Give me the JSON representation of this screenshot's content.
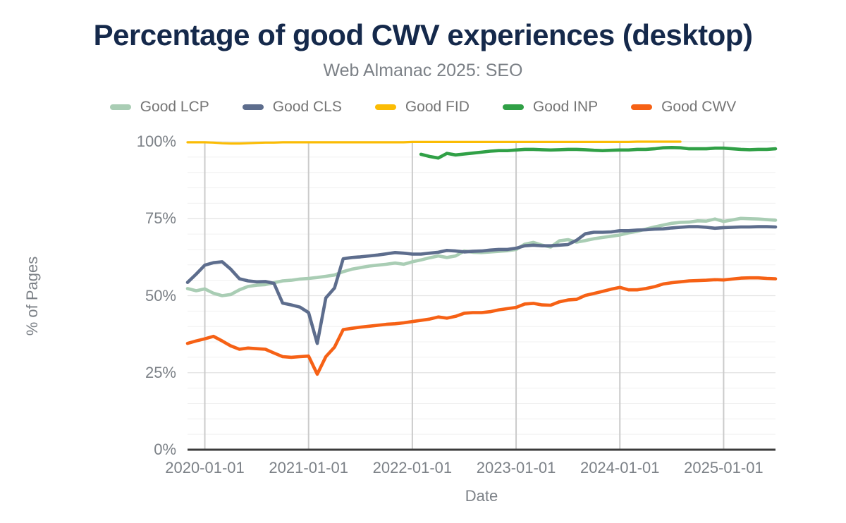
{
  "chart_data": {
    "type": "line",
    "title": "Percentage of good CWV experiences (desktop)",
    "subtitle": "Web Almanac 2025: SEO",
    "xlabel": "Date",
    "ylabel": "% of Pages",
    "ylim": [
      0,
      100
    ],
    "grid": {
      "y_major_step": 25,
      "y_minor_step": 5,
      "x_gridlines": "yearly"
    },
    "legend_position": "top",
    "y_ticks": [
      {
        "label": "0%",
        "value": 0
      },
      {
        "label": "25%",
        "value": 25
      },
      {
        "label": "50%",
        "value": 50
      },
      {
        "label": "75%",
        "value": 75
      },
      {
        "label": "100%",
        "value": 100
      }
    ],
    "x_ticks": [
      {
        "label": "2020-01-01",
        "month": "2020-01"
      },
      {
        "label": "2021-01-01",
        "month": "2021-01"
      },
      {
        "label": "2022-01-01",
        "month": "2022-01"
      },
      {
        "label": "2023-01-01",
        "month": "2023-01"
      },
      {
        "label": "2024-01-01",
        "month": "2024-01"
      },
      {
        "label": "2025-01-01",
        "month": "2025-01"
      }
    ],
    "x_months": [
      "2019-11",
      "2019-12",
      "2020-01",
      "2020-02",
      "2020-03",
      "2020-04",
      "2020-05",
      "2020-06",
      "2020-07",
      "2020-08",
      "2020-09",
      "2020-10",
      "2020-11",
      "2020-12",
      "2021-01",
      "2021-02",
      "2021-03",
      "2021-04",
      "2021-05",
      "2021-06",
      "2021-07",
      "2021-08",
      "2021-09",
      "2021-10",
      "2021-11",
      "2021-12",
      "2022-01",
      "2022-02",
      "2022-03",
      "2022-04",
      "2022-05",
      "2022-06",
      "2022-07",
      "2022-08",
      "2022-09",
      "2022-10",
      "2022-11",
      "2022-12",
      "2023-01",
      "2023-02",
      "2023-03",
      "2023-04",
      "2023-05",
      "2023-06",
      "2023-07",
      "2023-08",
      "2023-09",
      "2023-10",
      "2023-11",
      "2023-12",
      "2024-01",
      "2024-02",
      "2024-03",
      "2024-04",
      "2024-05",
      "2024-06",
      "2024-07",
      "2024-08",
      "2024-09",
      "2024-10",
      "2024-11",
      "2024-12",
      "2025-01",
      "2025-02",
      "2025-03",
      "2025-04",
      "2025-05",
      "2025-06",
      "2025-07"
    ],
    "series": [
      {
        "name": "Good LCP",
        "color": "#a9cdb4",
        "first_index": 0,
        "values": [
          52.3,
          51.6,
          52.2,
          50.8,
          50.0,
          50.4,
          51.9,
          53.0,
          53.4,
          53.6,
          54.2,
          54.8,
          55.0,
          55.4,
          55.6,
          55.9,
          56.3,
          56.7,
          57.8,
          58.6,
          59.1,
          59.6,
          59.9,
          60.2,
          60.6,
          60.2,
          61.0,
          61.6,
          62.3,
          62.9,
          62.4,
          62.9,
          64.5,
          64.1,
          64.0,
          64.2,
          64.4,
          64.6,
          65.0,
          66.7,
          67.3,
          66.4,
          65.8,
          67.8,
          68.2,
          67.4,
          67.9,
          68.5,
          68.9,
          69.3,
          69.7,
          70.4,
          70.9,
          71.6,
          72.3,
          72.9,
          73.5,
          73.8,
          73.9,
          74.3,
          74.2,
          74.9,
          74.1,
          74.6,
          75.1,
          75.0,
          74.9,
          74.7,
          74.5
        ]
      },
      {
        "name": "Good CLS",
        "color": "#5d6d8d",
        "first_index": 0,
        "values": [
          54.3,
          57.0,
          59.9,
          60.7,
          61.0,
          58.6,
          55.5,
          54.8,
          54.5,
          54.6,
          54.0,
          47.6,
          47.0,
          46.3,
          44.5,
          34.5,
          49.3,
          52.5,
          62.0,
          62.4,
          62.6,
          62.9,
          63.2,
          63.6,
          64.0,
          63.8,
          63.5,
          63.5,
          63.8,
          64.1,
          64.7,
          64.5,
          64.2,
          64.4,
          64.5,
          64.8,
          65.0,
          65.0,
          65.4,
          66.2,
          66.4,
          66.2,
          66.2,
          66.4,
          66.6,
          68.0,
          70.1,
          70.6,
          70.6,
          70.7,
          71.1,
          71.1,
          71.3,
          71.4,
          71.6,
          71.7,
          72.0,
          72.2,
          72.4,
          72.4,
          72.2,
          71.9,
          72.1,
          72.2,
          72.3,
          72.3,
          72.4,
          72.4,
          72.3
        ]
      },
      {
        "name": "Good FID",
        "color": "#fbbc04",
        "first_index": 0,
        "values": [
          99.8,
          99.8,
          99.8,
          99.7,
          99.5,
          99.4,
          99.4,
          99.5,
          99.6,
          99.7,
          99.7,
          99.8,
          99.8,
          99.8,
          99.8,
          99.8,
          99.8,
          99.8,
          99.8,
          99.8,
          99.8,
          99.8,
          99.8,
          99.8,
          99.8,
          99.8,
          99.9,
          99.9,
          99.9,
          99.9,
          99.9,
          99.9,
          99.9,
          99.9,
          99.9,
          99.9,
          99.9,
          99.9,
          99.9,
          99.9,
          99.9,
          99.9,
          99.9,
          99.9,
          99.9,
          99.9,
          99.9,
          99.9,
          99.9,
          99.9,
          99.9,
          99.9,
          100,
          100,
          100,
          100,
          100,
          100
        ]
      },
      {
        "name": "Good INP",
        "color": "#30a046",
        "first_index": 27,
        "values": [
          95.9,
          95.2,
          94.7,
          96.2,
          95.7,
          96.0,
          96.3,
          96.6,
          96.9,
          97.1,
          97.1,
          97.3,
          97.5,
          97.5,
          97.4,
          97.3,
          97.4,
          97.5,
          97.5,
          97.4,
          97.2,
          97.1,
          97.2,
          97.3,
          97.3,
          97.5,
          97.5,
          97.7,
          98.0,
          98.1,
          98.0,
          97.7,
          97.7,
          97.7,
          97.9,
          97.9,
          97.7,
          97.5,
          97.4,
          97.5,
          97.5,
          97.7
        ]
      },
      {
        "name": "Good CWV",
        "color": "#f66115",
        "first_index": 0,
        "values": [
          34.5,
          35.3,
          36.0,
          36.8,
          35.3,
          33.7,
          32.6,
          33.0,
          32.8,
          32.6,
          31.4,
          30.2,
          30.0,
          30.2,
          30.4,
          24.5,
          30.2,
          33.3,
          39.0,
          39.4,
          39.8,
          40.1,
          40.4,
          40.7,
          40.9,
          41.2,
          41.6,
          42.0,
          42.4,
          43.1,
          42.7,
          43.3,
          44.3,
          44.5,
          44.5,
          44.8,
          45.4,
          45.8,
          46.2,
          47.3,
          47.5,
          47.0,
          46.9,
          48.0,
          48.6,
          48.8,
          50.1,
          50.7,
          51.4,
          52.1,
          52.7,
          51.9,
          51.9,
          52.3,
          52.9,
          53.8,
          54.2,
          54.5,
          54.8,
          54.9,
          55.0,
          55.2,
          55.1,
          55.4,
          55.7,
          55.8,
          55.8,
          55.6,
          55.5
        ]
      }
    ]
  }
}
